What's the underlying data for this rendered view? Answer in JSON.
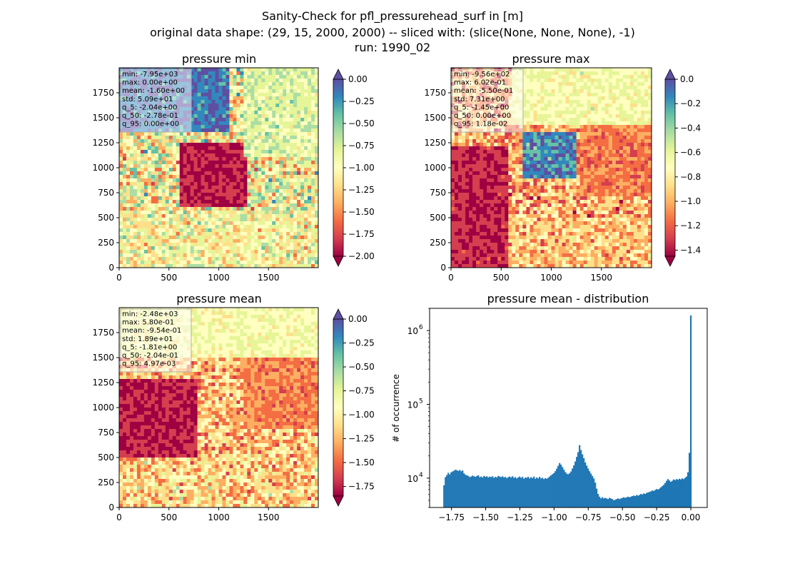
{
  "figure": {
    "suptitle_lines": [
      "Sanity-Check for pfl_pressurehead_surf in [m]",
      "original data shape: (29, 15, 2000, 2000) -- sliced with: (slice(None, None, None), -1)",
      "run: 1990_02"
    ]
  },
  "colors": {
    "spectral": [
      "#9e0142",
      "#d53e4f",
      "#f46d43",
      "#fdae61",
      "#fee08b",
      "#ffffbf",
      "#e6f598",
      "#abdda4",
      "#66c2a5",
      "#3288bd",
      "#5e4fa2"
    ],
    "histogram_bar": "#1f77b4"
  },
  "chart_data": [
    {
      "type": "heatmap",
      "title": "pressure min",
      "xlim": [
        0,
        2000
      ],
      "ylim": [
        0,
        2000
      ],
      "xticks": [
        "0",
        "500",
        "1000",
        "1500"
      ],
      "yticks": [
        "0",
        "250",
        "500",
        "750",
        "1000",
        "1250",
        "1500",
        "1750"
      ],
      "colorbar": {
        "min": -2.0,
        "max": 0.0,
        "ticks": [
          "0.00",
          "−0.25",
          "−0.50",
          "−0.75",
          "−1.00",
          "−1.25",
          "−1.50",
          "−1.75",
          "−2.00"
        ],
        "extend": "both"
      },
      "stats": [
        "min: -7.95e+03",
        "max: 0.00e+00",
        "mean: -1.60e+00",
        "std: 5.09e+01",
        "q_5: -2.04e+00",
        "q_50: -2.78e-01",
        "q_95: 0.00e+00"
      ]
    },
    {
      "type": "heatmap",
      "title": "pressure max",
      "xlim": [
        0,
        2000
      ],
      "ylim": [
        0,
        2000
      ],
      "xticks": [
        "0",
        "500",
        "1000",
        "1500"
      ],
      "yticks": [
        "0",
        "250",
        "500",
        "750",
        "1000",
        "1250",
        "1500",
        "1750"
      ],
      "colorbar": {
        "min": -1.45,
        "max": 0.0,
        "ticks": [
          "0.0",
          "−0.2",
          "−0.4",
          "−0.6",
          "−0.8",
          "−1.0",
          "−1.2",
          "−1.4"
        ],
        "extend": "both"
      },
      "stats": [
        "min: -9.56e+02",
        "max: 6.02e-01",
        "mean: -5.50e-01",
        "std: 7.31e+00",
        "q_5: -1.45e+00",
        "q_50: 0.00e+00",
        "q_95: 1.18e-02"
      ]
    },
    {
      "type": "heatmap",
      "title": "pressure mean",
      "xlim": [
        0,
        2000
      ],
      "ylim": [
        0,
        2000
      ],
      "xticks": [
        "0",
        "500",
        "1000",
        "1500"
      ],
      "yticks": [
        "0",
        "250",
        "500",
        "750",
        "1000",
        "1250",
        "1500",
        "1750"
      ],
      "colorbar": {
        "min": -1.85,
        "max": 0.0,
        "ticks": [
          "0.00",
          "−0.25",
          "−0.50",
          "−0.75",
          "−1.00",
          "−1.25",
          "−1.50",
          "−1.75"
        ],
        "extend": "both"
      },
      "stats": [
        "min: -2.48e+03",
        "max: 5.80e-01",
        "mean: -9.54e-01",
        "std: 1.89e+01",
        "q_5: -1.81e+00",
        "q_50: -2.04e-01",
        "q_95: 4.97e-03"
      ]
    },
    {
      "type": "bar",
      "title": "pressure mean - distribution",
      "ylabel": "# of occurrence",
      "yscale": "log",
      "xlim": [
        -1.91,
        0.12
      ],
      "ylim": [
        4000,
        2000000
      ],
      "xticks": [
        "−1.75",
        "−1.50",
        "−1.25",
        "−1.00",
        "−0.75",
        "−0.50",
        "−0.25",
        "0.00"
      ],
      "xtick_values": [
        -1.75,
        -1.5,
        -1.25,
        -1.0,
        -0.75,
        -0.5,
        -0.25,
        0.0
      ],
      "yticks": [
        "10",
        "10",
        "10"
      ],
      "ytick_exponents": [
        "4",
        "5",
        "6"
      ],
      "ytick_values": [
        10000,
        100000,
        1000000
      ],
      "bin_range": [
        -1.81,
        0.005
      ],
      "counts": [
        8000,
        10300,
        11000,
        11800,
        11200,
        12000,
        12300,
        12600,
        13000,
        12800,
        12500,
        12900,
        12400,
        12700,
        11600,
        11100,
        10900,
        10700,
        10300,
        10500,
        10800,
        10600,
        10400,
        10700,
        10900,
        10300,
        10500,
        10200,
        10700,
        10400,
        10600,
        10200,
        10500,
        10300,
        10600,
        10100,
        10400,
        10200,
        10700,
        10500,
        10300,
        10600,
        10200,
        10400,
        10000,
        10300,
        10500,
        10200,
        10600,
        10100,
        10300,
        9900,
        10200,
        10500,
        10100,
        10400,
        9800,
        10200,
        10100,
        10400,
        9900,
        10300,
        10000,
        10500,
        9800,
        10200,
        9900,
        10400,
        9900,
        10100,
        9700,
        10000,
        9800,
        10100,
        10500,
        10900,
        11300,
        11700,
        12400,
        13400,
        14700,
        16000,
        15200,
        14100,
        13000,
        12100,
        11500,
        11300,
        11600,
        12300,
        13500,
        14900,
        16800,
        19400,
        22500,
        28000,
        24000,
        21000,
        18600,
        16300,
        14800,
        13500,
        12400,
        11500,
        10700,
        9900,
        8700,
        7200,
        6100,
        5600,
        5300,
        5500,
        5300,
        5400,
        5300,
        5200,
        5400,
        5300,
        5200,
        5000,
        5100,
        5200,
        5300,
        5200,
        5300,
        5400,
        5500,
        5400,
        5500,
        5600,
        5500,
        5600,
        5700,
        5800,
        5700,
        5900,
        5800,
        5900,
        6100,
        6000,
        6200,
        6100,
        6300,
        6400,
        6500,
        6600,
        6800,
        6700,
        6900,
        7100,
        7000,
        7200,
        7500,
        7800,
        8100,
        8600,
        9200,
        9700,
        9300,
        8900,
        9200,
        9600,
        9400,
        9700,
        9500,
        9800,
        9600,
        9900,
        9700,
        10100,
        10500,
        12000,
        22000,
        1600000
      ]
    }
  ]
}
